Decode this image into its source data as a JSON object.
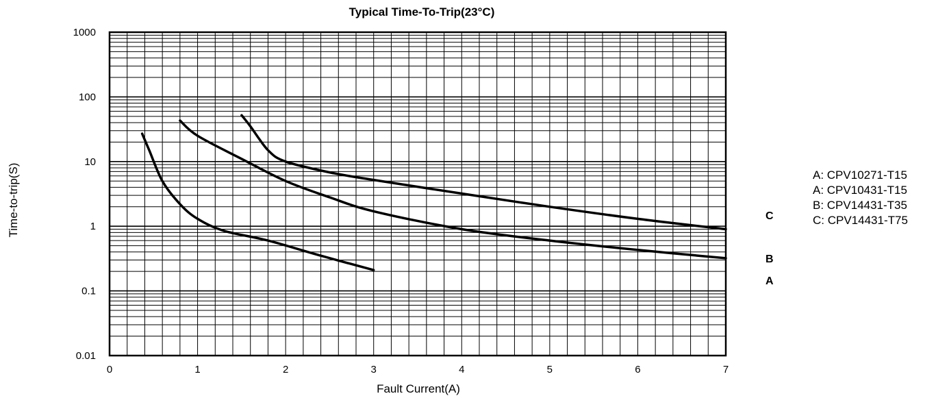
{
  "chart_data": {
    "type": "line",
    "title": "Typical Time-To-Trip(23°C)",
    "xlabel": "Fault Current(A)",
    "ylabel": "Time-to-trip(S)",
    "xlim": [
      0,
      7
    ],
    "ylim": [
      0.01,
      1000
    ],
    "yscale": "log",
    "grid": true,
    "x_ticks": [
      "0",
      "1",
      "2",
      "3",
      "4",
      "5",
      "6",
      "7"
    ],
    "y_ticks": [
      "1000",
      "100",
      "10",
      "1",
      "0.1",
      "0.01"
    ],
    "series": [
      {
        "name": "A",
        "points": [
          [
            0.37,
            27
          ],
          [
            0.45,
            15
          ],
          [
            0.6,
            5
          ],
          [
            0.8,
            2.2
          ],
          [
            1.0,
            1.3
          ],
          [
            1.3,
            0.85
          ],
          [
            1.8,
            0.6
          ],
          [
            2.4,
            0.35
          ],
          [
            3.0,
            0.21
          ]
        ]
      },
      {
        "name": "B",
        "points": [
          [
            0.8,
            43
          ],
          [
            1.0,
            25
          ],
          [
            1.5,
            11
          ],
          [
            2.0,
            5
          ],
          [
            2.5,
            2.8
          ],
          [
            3.0,
            1.7
          ],
          [
            4.0,
            0.9
          ],
          [
            5.0,
            0.6
          ],
          [
            6.0,
            0.43
          ],
          [
            7.0,
            0.32
          ]
        ]
      },
      {
        "name": "C",
        "points": [
          [
            1.5,
            52
          ],
          [
            1.6,
            35
          ],
          [
            1.8,
            15
          ],
          [
            2.0,
            10
          ],
          [
            2.5,
            6.8
          ],
          [
            3.0,
            5.2
          ],
          [
            4.0,
            3.2
          ],
          [
            5.0,
            2.0
          ],
          [
            6.0,
            1.3
          ],
          [
            7.0,
            0.9
          ]
        ]
      }
    ],
    "curve_labels": [
      "C",
      "B",
      "A"
    ],
    "legend": [
      "A: CPV10271-T15",
      "A: CPV10431-T15",
      "B: CPV14431-T35",
      "C: CPV14431-T75"
    ],
    "legend_position": "right"
  }
}
